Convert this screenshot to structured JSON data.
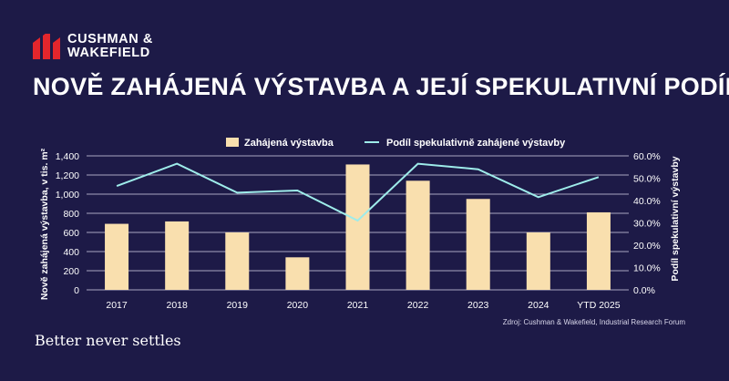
{
  "brand": {
    "line1": "CUSHMAN &",
    "line2": "WAKEFIELD"
  },
  "title": "NOVĚ ZAHÁJENÁ VÝSTAVBA A JEJÍ SPEKULATIVNÍ PODÍL",
  "source": "Zdroj: Cushman & Wakefield, Industrial Research Forum",
  "tagline": "Better never settles",
  "colors": {
    "background": "#1d1a47",
    "bar": "#f9dfae",
    "line": "#9eecea",
    "brand_red": "#e3262c"
  },
  "chart_data": {
    "type": "bar",
    "categories": [
      "2017",
      "2018",
      "2019",
      "2020",
      "2021",
      "2022",
      "2023",
      "2024",
      "YTD 2025"
    ],
    "series": [
      {
        "name": "Zahájená výstavba",
        "type": "bar",
        "axis": "left",
        "values": [
          690,
          715,
          600,
          340,
          1310,
          1140,
          950,
          600,
          810
        ]
      },
      {
        "name": "Podíl spekulativně zahájené výstavby",
        "type": "line",
        "axis": "right",
        "values": [
          46.5,
          56.5,
          43.5,
          44.5,
          31.0,
          56.5,
          54.0,
          41.5,
          50.5
        ]
      }
    ],
    "ylim": [
      0,
      1400
    ],
    "yticks": [
      "0",
      "200",
      "400",
      "600",
      "800",
      "1,000",
      "1,200",
      "1,400"
    ],
    "y2lim": [
      0,
      60
    ],
    "y2ticks": [
      "0.0%",
      "10.0%",
      "20.0%",
      "30.0%",
      "40.0%",
      "50.0%",
      "60.0%"
    ],
    "ylabel": "Nově zahájená výstavba, v tis. m²",
    "y2label": "Podíl spekulativní výstavby",
    "legend_position": "top-center",
    "grid": true
  }
}
